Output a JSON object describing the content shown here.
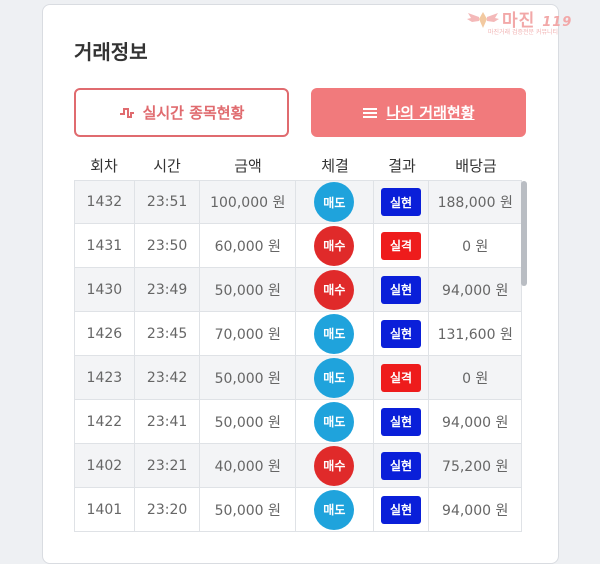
{
  "logo": {
    "main": "마진",
    "suffix": "119",
    "sub": "마진거래 검증전문 커뮤니티"
  },
  "title": "거래정보",
  "buttons": {
    "realtime": "실시간 종목현황",
    "mytrades": "나의 거래현황"
  },
  "columns": [
    "회차",
    "시간",
    "금액",
    "체결",
    "결과",
    "배당금"
  ],
  "colors": {
    "sell": "#1fa3dc",
    "buy": "#e02a2a",
    "win": "#0a1fd9",
    "lose": "#ee1c1c",
    "accent": "#f17a7c"
  },
  "rows": [
    {
      "round": "1432",
      "time": "23:51",
      "amount": "100,000 원",
      "trade": "매도",
      "trade_type": "sell",
      "result": "실현",
      "result_type": "win",
      "payout": "188,000 원"
    },
    {
      "round": "1431",
      "time": "23:50",
      "amount": "60,000 원",
      "trade": "매수",
      "trade_type": "buy",
      "result": "실격",
      "result_type": "lose",
      "payout": "0 원"
    },
    {
      "round": "1430",
      "time": "23:49",
      "amount": "50,000 원",
      "trade": "매수",
      "trade_type": "buy",
      "result": "실현",
      "result_type": "win",
      "payout": "94,000 원"
    },
    {
      "round": "1426",
      "time": "23:45",
      "amount": "70,000 원",
      "trade": "매도",
      "trade_type": "sell",
      "result": "실현",
      "result_type": "win",
      "payout": "131,600 원"
    },
    {
      "round": "1423",
      "time": "23:42",
      "amount": "50,000 원",
      "trade": "매도",
      "trade_type": "sell",
      "result": "실격",
      "result_type": "lose",
      "payout": "0 원"
    },
    {
      "round": "1422",
      "time": "23:41",
      "amount": "50,000 원",
      "trade": "매도",
      "trade_type": "sell",
      "result": "실현",
      "result_type": "win",
      "payout": "94,000 원"
    },
    {
      "round": "1402",
      "time": "23:21",
      "amount": "40,000 원",
      "trade": "매수",
      "trade_type": "buy",
      "result": "실현",
      "result_type": "win",
      "payout": "75,200 원"
    },
    {
      "round": "1401",
      "time": "23:20",
      "amount": "50,000 원",
      "trade": "매도",
      "trade_type": "sell",
      "result": "실현",
      "result_type": "win",
      "payout": "94,000 원"
    }
  ]
}
